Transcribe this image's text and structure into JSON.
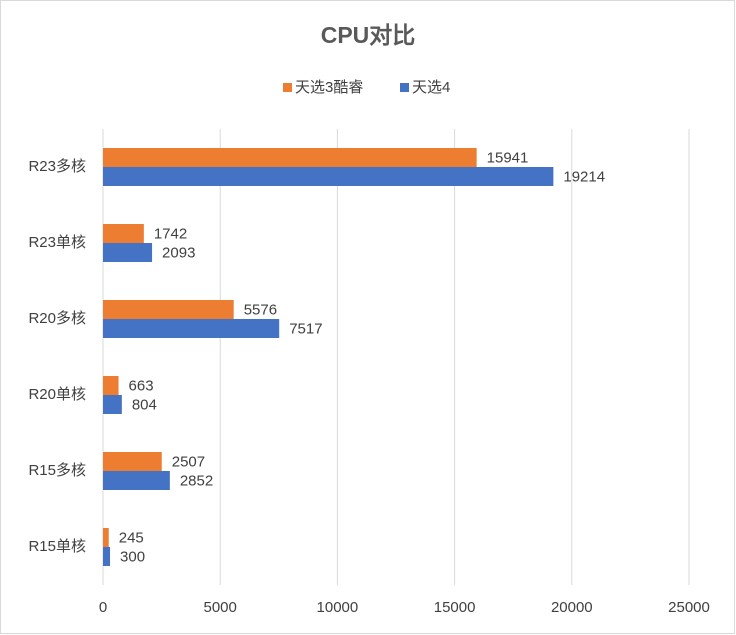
{
  "chart_data": {
    "type": "bar",
    "orientation": "horizontal",
    "title": "CPU对比",
    "categories": [
      "R23多核",
      "R23单核",
      "R20多核",
      "R20单核",
      "R15多核",
      "R15单核"
    ],
    "series": [
      {
        "name": "天选3酷睿",
        "color": "#ed7d31",
        "values": [
          15941,
          1742,
          5576,
          663,
          2507,
          245
        ]
      },
      {
        "name": "天选4",
        "color": "#4472c4",
        "values": [
          19214,
          2093,
          7517,
          804,
          2852,
          300
        ]
      }
    ],
    "xlim": [
      0,
      25000
    ],
    "xticks": [
      0,
      5000,
      10000,
      15000,
      20000,
      25000
    ],
    "grid": true,
    "legend": "top"
  }
}
